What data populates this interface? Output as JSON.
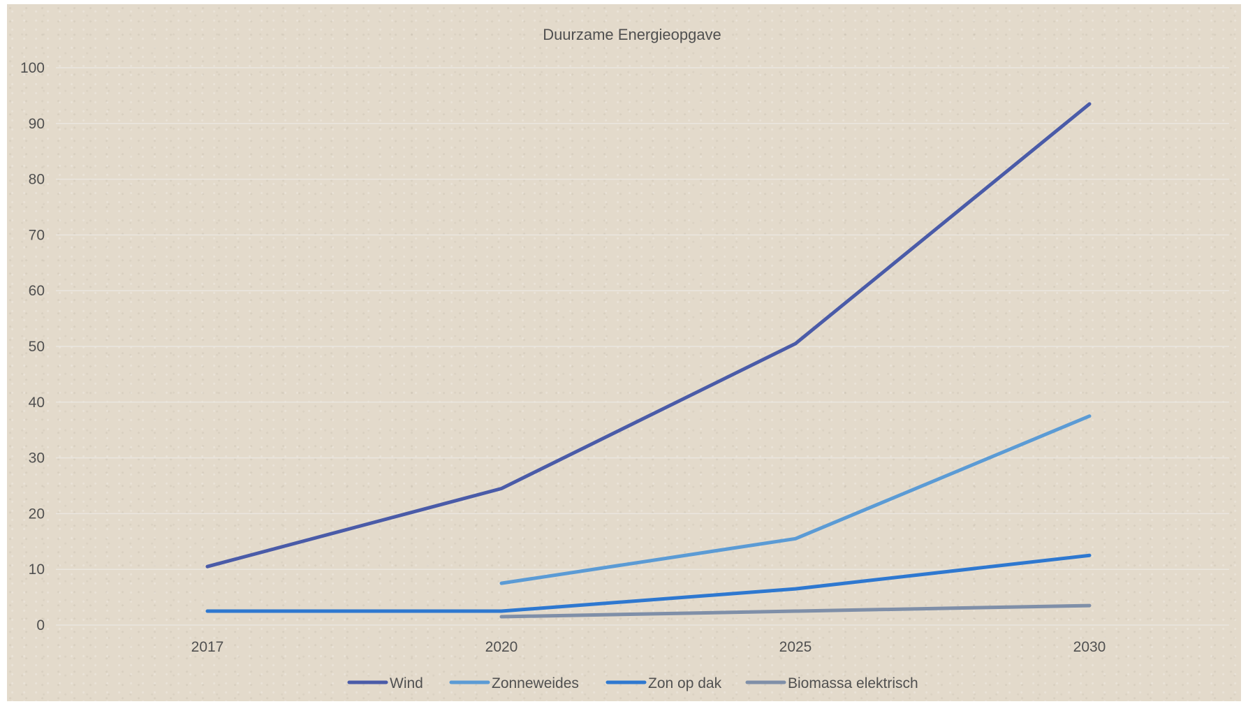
{
  "chart_data": {
    "type": "line",
    "title": "Duurzame Energieopgave",
    "xlabel": "",
    "ylabel": "",
    "categories": [
      "2017",
      "2020",
      "2025",
      "2030"
    ],
    "ylim": [
      0,
      100
    ],
    "yticks": [
      "0",
      "10",
      "20",
      "30",
      "40",
      "50",
      "60",
      "70",
      "80",
      "90",
      "100"
    ],
    "grid": "horizontal",
    "legend_position": "bottom",
    "series": [
      {
        "name": "Wind",
        "color": "#4a5ba8",
        "values": [
          10.5,
          24.5,
          50.5,
          93.5
        ]
      },
      {
        "name": "Zonneweides",
        "color": "#5b9bd5",
        "values": [
          null,
          7.5,
          15.5,
          37.5
        ]
      },
      {
        "name": "Zon op dak",
        "color": "#2e78d0",
        "values": [
          2.5,
          2.5,
          6.5,
          12.5
        ]
      },
      {
        "name": "Biomassa elektrisch",
        "color": "#7f8fa8",
        "values": [
          null,
          1.5,
          2.5,
          3.5
        ]
      }
    ]
  }
}
